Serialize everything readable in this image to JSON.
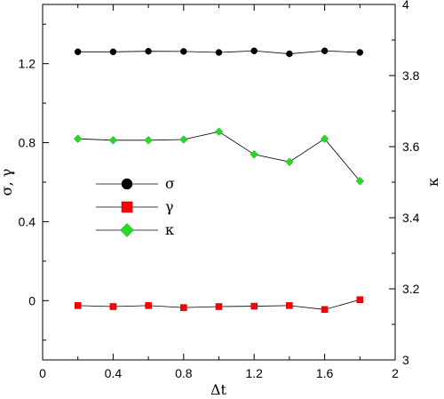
{
  "chart_data": {
    "type": "line",
    "xlabel": "Δt",
    "ylabel_left": "σ, γ",
    "ylabel_right": "κ",
    "xlim": [
      0,
      2
    ],
    "ylim_left": [
      -0.3,
      1.5
    ],
    "ylim_right": [
      3.0,
      4.0
    ],
    "x_ticks": [
      "0",
      "0.4",
      "0.8",
      "1.2",
      "1.6",
      "2"
    ],
    "y_left_ticks": [
      "0",
      "0.4",
      "0.8",
      "1.2"
    ],
    "y_right_ticks": [
      "3",
      "3.2",
      "3.4",
      "3.6",
      "3.8",
      "4"
    ],
    "grid": false,
    "legend_position": "center-left",
    "x": [
      0.2,
      0.4,
      0.6,
      0.8,
      1.0,
      1.2,
      1.4,
      1.6,
      1.8
    ],
    "series": [
      {
        "name": "σ",
        "axis": "left",
        "marker": "circle",
        "color": "#000000",
        "values": [
          1.26,
          1.26,
          1.263,
          1.262,
          1.257,
          1.265,
          1.25,
          1.265,
          1.257
        ]
      },
      {
        "name": "γ",
        "axis": "left",
        "marker": "square",
        "color": "#ff0000",
        "values": [
          -0.025,
          -0.03,
          -0.025,
          -0.035,
          -0.03,
          -0.028,
          -0.025,
          -0.045,
          0.005
        ]
      },
      {
        "name": "κ",
        "axis": "right",
        "marker": "diamond",
        "color": "#22dd22",
        "values": [
          3.622,
          3.618,
          3.618,
          3.62,
          3.642,
          3.578,
          3.557,
          3.622,
          3.503
        ]
      }
    ]
  }
}
